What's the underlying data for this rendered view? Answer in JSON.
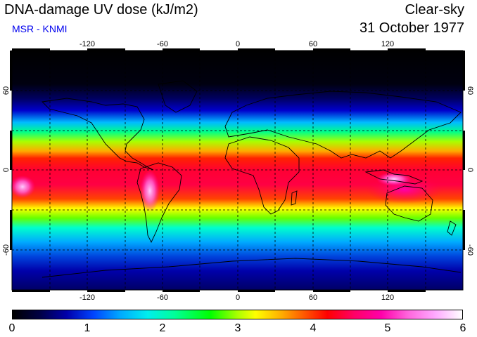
{
  "header": {
    "title": "DNA-damage UV dose (kJ/m2)",
    "subtitle": "MSR - KNMI",
    "condition": "Clear-sky",
    "date": "31 October 1977"
  },
  "map": {
    "lon_ticks": [
      "-120",
      "-60",
      "0",
      "60",
      "120"
    ],
    "lat_ticks": [
      "60",
      "0",
      "-60"
    ],
    "projection": "equirectangular",
    "gridlines": "dashed every 30 degrees"
  },
  "colorbar": {
    "labels": [
      "0",
      "1",
      "2",
      "3",
      "4",
      "5",
      "6"
    ],
    "min": 0,
    "max": 6
  }
}
